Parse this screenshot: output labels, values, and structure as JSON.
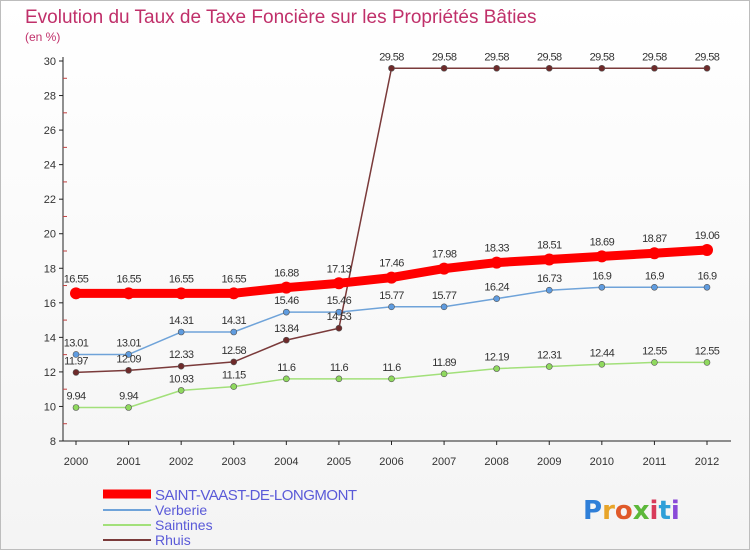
{
  "chart_data": {
    "type": "line",
    "title": "Evolution du Taux de Taxe Foncière sur les Propriétés Bâties",
    "subtitle": "(en %)",
    "x": [
      "2000",
      "2001",
      "2002",
      "2003",
      "2004",
      "2005",
      "2006",
      "2007",
      "2008",
      "2009",
      "2010",
      "2011",
      "2012"
    ],
    "ylim": [
      8,
      30
    ],
    "yticks": [
      "8",
      "10",
      "12",
      "14",
      "16",
      "18",
      "20",
      "22",
      "24",
      "26",
      "28",
      "30"
    ],
    "grid": false,
    "legend_position": "bottom-left",
    "series": [
      {
        "name": "SAINT-VAAST-DE-LONGMONT",
        "color": "#ff0000",
        "marker": "#ff0000",
        "width": 9,
        "values": [
          16.55,
          16.55,
          16.55,
          16.55,
          16.88,
          17.13,
          17.46,
          17.98,
          18.33,
          18.51,
          18.69,
          18.87,
          19.06
        ],
        "labels": [
          "16.55",
          "16.55",
          "16.55",
          "16.55",
          "16.88",
          "17.13",
          "17.46",
          "17.98",
          "18.33",
          "18.51",
          "18.69",
          "18.87",
          "19.06"
        ]
      },
      {
        "name": "Verberie",
        "color": "#6fa3d9",
        "marker": "#5f9ce0",
        "width": 1.5,
        "values": [
          13.01,
          13.01,
          14.31,
          14.31,
          15.46,
          15.46,
          15.77,
          15.77,
          16.24,
          16.73,
          16.9,
          16.9,
          16.9
        ],
        "labels": [
          "13.01",
          "13.01",
          "14.31",
          "14.31",
          "15.46",
          "15.46",
          "15.77",
          "15.77",
          "16.24",
          "16.73",
          "16.9",
          "16.9",
          "16.9"
        ]
      },
      {
        "name": "Saintines",
        "color": "#a2e07a",
        "marker": "#8fd95e",
        "width": 1.5,
        "values": [
          9.94,
          9.94,
          10.93,
          11.15,
          11.6,
          11.6,
          11.6,
          11.89,
          12.19,
          12.31,
          12.44,
          12.55,
          12.55
        ],
        "labels": [
          "9.94",
          "9.94",
          "10.93",
          "11.15",
          "11.6",
          "11.6",
          "11.6",
          "11.89",
          "12.19",
          "12.31",
          "12.44",
          "12.55",
          "12.55"
        ]
      },
      {
        "name": "Rhuis",
        "color": "#7a3a3a",
        "marker": "#6e2a2a",
        "width": 1.5,
        "values": [
          11.97,
          12.09,
          12.33,
          12.58,
          13.84,
          14.53,
          29.58,
          29.58,
          29.58,
          29.58,
          29.58,
          29.58,
          29.58
        ],
        "labels": [
          "11.97",
          "12.09",
          "12.33",
          "12.58",
          "13.84",
          "14.53",
          "29.58",
          "29.58",
          "29.58",
          "29.58",
          "29.58",
          "29.58",
          "29.58"
        ]
      }
    ]
  },
  "brand": {
    "text": "Proxiti"
  }
}
